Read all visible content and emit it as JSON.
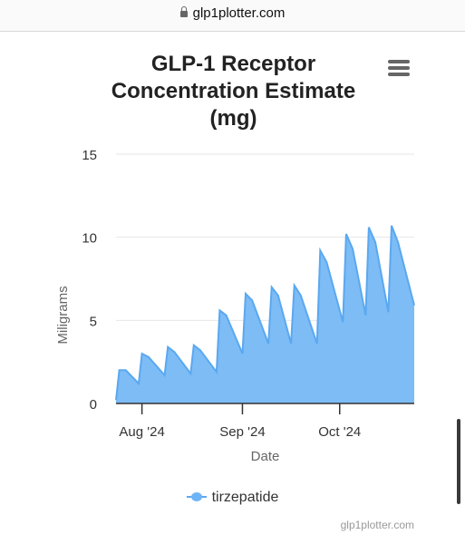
{
  "browser": {
    "url": "glp1plotter.com"
  },
  "title_lines": [
    "GLP-1 Receptor",
    "Concentration Estimate",
    "(mg)"
  ],
  "credit": "glp1plotter.com",
  "colors": {
    "area_fill": "#7dbcf5",
    "line": "#5aa8f0",
    "grid": "#e6e6e6",
    "axis": "#333333"
  },
  "icons": {
    "menu": "hamburger-menu-icon",
    "lock": "lock-icon",
    "legend": "area-series-icon"
  },
  "chart_data": {
    "type": "area",
    "title": "GLP-1 Receptor Concentration Estimate (mg)",
    "xlabel": "Date",
    "ylabel": "Miligrams",
    "ylim": [
      0,
      15
    ],
    "yticks": [
      "0",
      "5",
      "10",
      "15"
    ],
    "xticks": [
      {
        "label": "Aug '24",
        "date": "2024-08-01"
      },
      {
        "label": "Sep '24",
        "date": "2024-09-01"
      },
      {
        "label": "Oct '24",
        "date": "2024-10-01"
      }
    ],
    "xlim": [
      "2024-07-24",
      "2024-10-24"
    ],
    "grid": true,
    "legend_position": "bottom-center",
    "series": [
      {
        "name": "tirzepatide",
        "points": [
          [
            "2024-07-24",
            0.2
          ],
          [
            "2024-07-25",
            2.0
          ],
          [
            "2024-07-27",
            2.0
          ],
          [
            "2024-07-31",
            1.2
          ],
          [
            "2024-08-01",
            3.0
          ],
          [
            "2024-08-03",
            2.8
          ],
          [
            "2024-08-08",
            1.7
          ],
          [
            "2024-08-09",
            3.4
          ],
          [
            "2024-08-11",
            3.1
          ],
          [
            "2024-08-16",
            1.8
          ],
          [
            "2024-08-17",
            3.5
          ],
          [
            "2024-08-19",
            3.2
          ],
          [
            "2024-08-24",
            1.9
          ],
          [
            "2024-08-25",
            5.6
          ],
          [
            "2024-08-27",
            5.3
          ],
          [
            "2024-09-01",
            3.0
          ],
          [
            "2024-09-02",
            6.6
          ],
          [
            "2024-09-04",
            6.2
          ],
          [
            "2024-09-09",
            3.6
          ],
          [
            "2024-09-10",
            7.0
          ],
          [
            "2024-09-12",
            6.5
          ],
          [
            "2024-09-16",
            3.6
          ],
          [
            "2024-09-17",
            7.1
          ],
          [
            "2024-09-19",
            6.5
          ],
          [
            "2024-09-24",
            3.6
          ],
          [
            "2024-09-25",
            9.2
          ],
          [
            "2024-09-27",
            8.5
          ],
          [
            "2024-10-02",
            4.9
          ],
          [
            "2024-10-03",
            10.2
          ],
          [
            "2024-10-05",
            9.3
          ],
          [
            "2024-10-09",
            5.3
          ],
          [
            "2024-10-10",
            10.6
          ],
          [
            "2024-10-12",
            9.7
          ],
          [
            "2024-10-16",
            5.5
          ],
          [
            "2024-10-17",
            10.7
          ],
          [
            "2024-10-19",
            9.7
          ],
          [
            "2024-10-24",
            5.9
          ]
        ]
      }
    ]
  }
}
